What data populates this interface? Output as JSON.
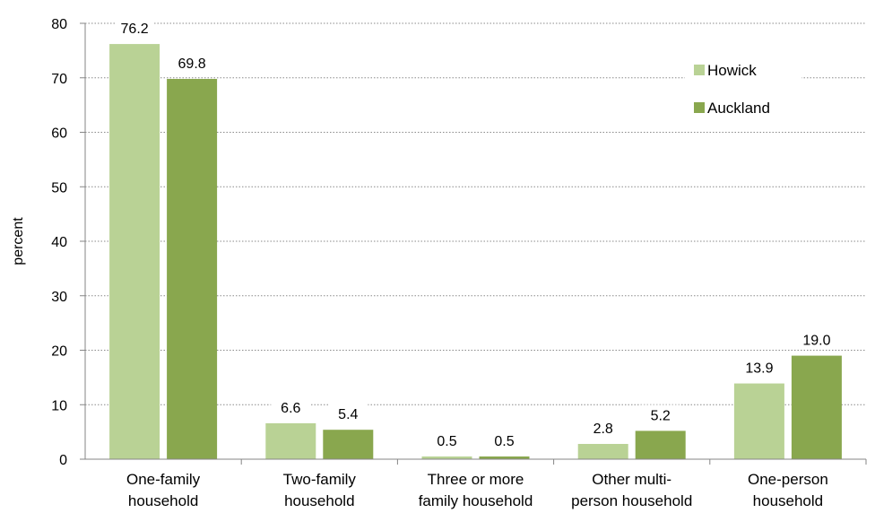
{
  "chart_data": {
    "type": "bar",
    "categories": [
      [
        "One-family",
        "household"
      ],
      [
        "Two-family",
        "household"
      ],
      [
        "Three or more",
        "family household"
      ],
      [
        "Other multi-",
        "person household"
      ],
      [
        "One-person",
        "household"
      ]
    ],
    "series": [
      {
        "name": "Howick",
        "values": [
          76.2,
          6.6,
          0.5,
          2.8,
          13.9
        ],
        "labels": [
          "76.2",
          "6.6",
          "0.5",
          "2.8",
          "13.9"
        ],
        "color": "#b9d295"
      },
      {
        "name": "Auckland",
        "values": [
          69.8,
          5.4,
          0.5,
          5.2,
          19.0
        ],
        "labels": [
          "69.8",
          "5.4",
          "0.5",
          "5.2",
          "19.0"
        ],
        "color": "#89a74e"
      }
    ],
    "title": "",
    "xlabel": "",
    "ylabel": "percent",
    "ylim": [
      0,
      80
    ],
    "yticks": [
      0,
      10,
      20,
      30,
      40,
      50,
      60,
      70,
      80
    ],
    "grid": true,
    "legend_position": "top-right"
  }
}
